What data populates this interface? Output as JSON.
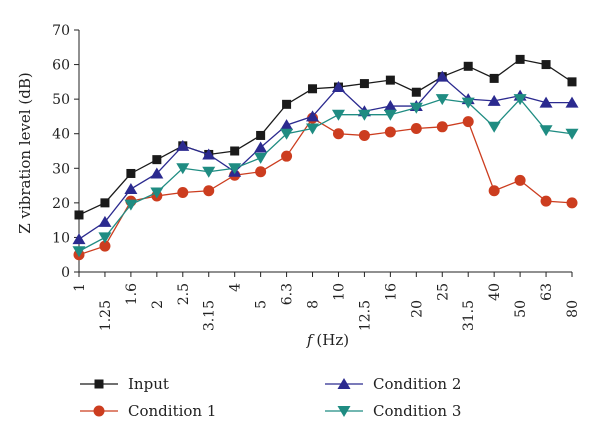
{
  "chart_data": {
    "type": "line",
    "categories": [
      "1",
      "1.25",
      "1.6",
      "2",
      "2.5",
      "3.15",
      "4",
      "5",
      "6.3",
      "8",
      "10",
      "12.5",
      "16",
      "20",
      "25",
      "31.5",
      "40",
      "50",
      "63",
      "80"
    ],
    "ylabel": "Z vibration level (dB)",
    "xlabel_symbol": "f",
    "xlabel_unit": "(Hz)",
    "ylim": [
      0,
      70
    ],
    "yticks": [
      0,
      10,
      20,
      30,
      40,
      50,
      60,
      70
    ],
    "grid": false,
    "legend_position": "bottom",
    "series": [
      {
        "name": "Input",
        "color": "#1a1a1a",
        "marker": "square",
        "values": [
          16.5,
          20,
          28.5,
          32.5,
          36.5,
          34,
          35,
          39.5,
          48.5,
          53,
          53.5,
          54.5,
          55.5,
          52,
          56.5,
          59.5,
          56,
          61.5,
          60,
          55
        ]
      },
      {
        "name": "Condition 1",
        "color": "#cc3d1f",
        "marker": "circle",
        "values": [
          5,
          7.5,
          20.5,
          22,
          23,
          23.5,
          28,
          29,
          33.5,
          44.5,
          40,
          39.5,
          40.5,
          41.5,
          42,
          43.5,
          23.5,
          26.5,
          20.5,
          20
        ]
      },
      {
        "name": "Condition 2",
        "color": "#2b2a8f",
        "marker": "triangle-up",
        "values": [
          9.5,
          14.5,
          24,
          28.5,
          36.5,
          34,
          29,
          36,
          42.5,
          45,
          53.5,
          46.5,
          48,
          48,
          56.5,
          50,
          49.5,
          51,
          49,
          49
        ]
      },
      {
        "name": "Condition 3",
        "color": "#1f8c82",
        "marker": "triangle-down",
        "values": [
          6,
          10,
          19.5,
          23,
          30,
          29,
          30,
          33,
          40,
          41.5,
          45.5,
          45.5,
          45.5,
          47.5,
          50,
          49,
          42,
          50,
          41,
          40
        ]
      }
    ]
  }
}
